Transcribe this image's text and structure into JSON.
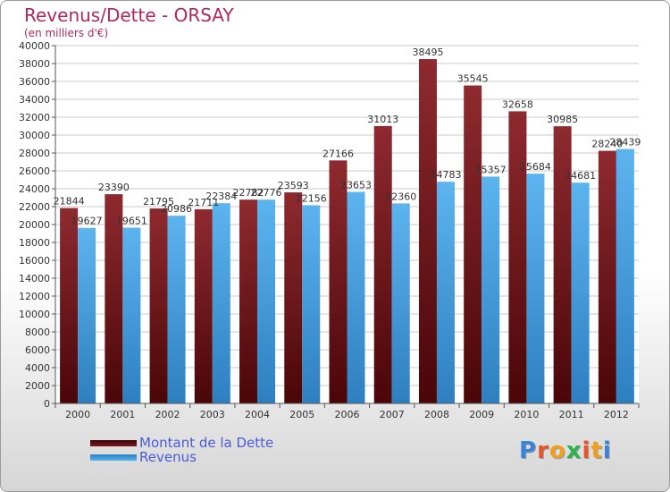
{
  "title": "Revenus/Dette - ORSAY",
  "subtitle": "(en milliers d'€)",
  "logo_text": "Proxiti",
  "colors": {
    "debt": "#7a1a1f",
    "revenue": "#4ea7e6",
    "title": "#b0275e",
    "legend_text": "#4a5bd8"
  },
  "chart_data": {
    "type": "bar",
    "categories": [
      "2000",
      "2001",
      "2002",
      "2003",
      "2004",
      "2005",
      "2006",
      "2007",
      "2008",
      "2009",
      "2010",
      "2011",
      "2012"
    ],
    "series": [
      {
        "name": "Montant de la Dette",
        "values": [
          21844,
          23390,
          21795,
          21711,
          22782,
          23593,
          27166,
          31013,
          38495,
          35545,
          32658,
          30985,
          28240
        ]
      },
      {
        "name": "Revenus",
        "values": [
          19627,
          19651,
          20986,
          22384,
          22776,
          22156,
          23653,
          22360,
          24783,
          25357,
          25684,
          24681,
          28439
        ]
      }
    ],
    "ylim": [
      0,
      40000
    ],
    "yticks": [
      0,
      2000,
      4000,
      6000,
      8000,
      10000,
      12000,
      14000,
      16000,
      18000,
      20000,
      22000,
      24000,
      26000,
      28000,
      30000,
      32000,
      34000,
      36000,
      38000,
      40000
    ],
    "grid": true,
    "legend_position": "bottom-left"
  }
}
